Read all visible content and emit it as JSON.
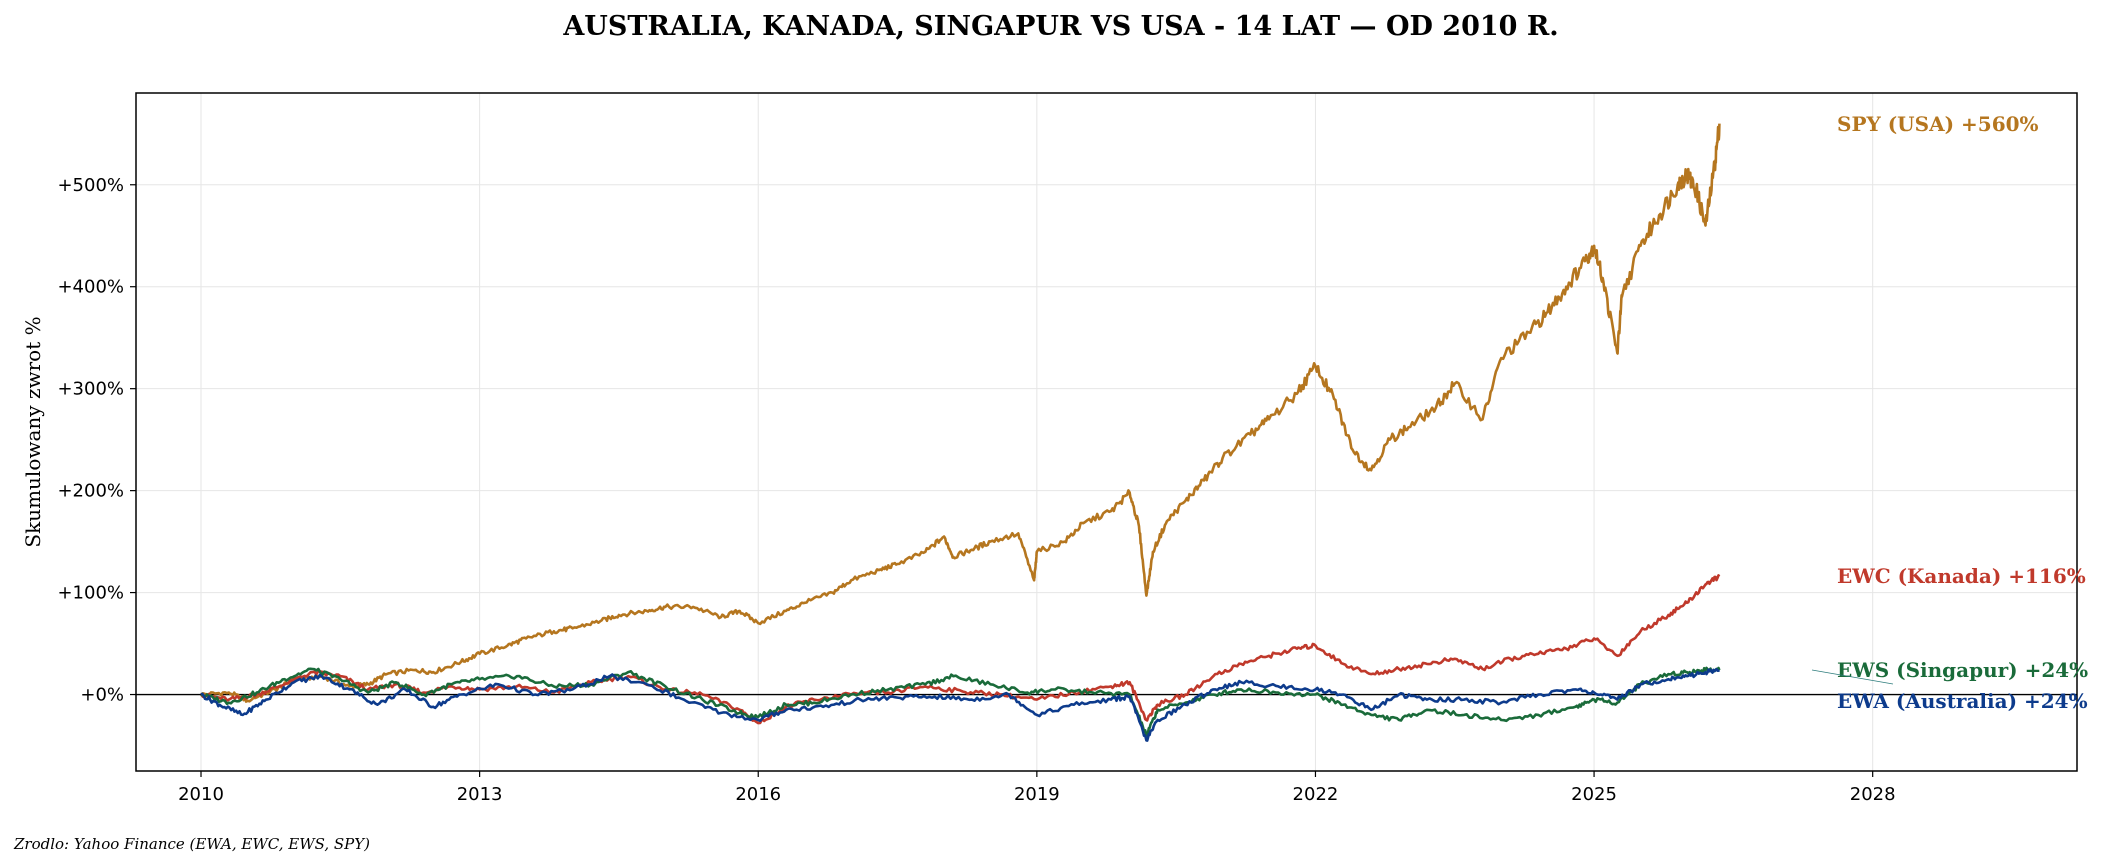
{
  "chart_data": {
    "type": "line",
    "title": "AUSTRALIA, KANADA, SINGAPUR VS USA - 14 LAT — OD 2010 R.",
    "ylabel": "Skumulowany zwrot %",
    "xlabel": "",
    "source": "Zrodlo: Yahoo Finance (EWA, EWC, EWS, SPY)",
    "xlim": [
      2009.3,
      2030.2
    ],
    "ylim": [
      -75,
      590
    ],
    "grid": true,
    "x_ticks": [
      2010,
      2013,
      2016,
      2019,
      2022,
      2025,
      2028
    ],
    "x_tick_labels": [
      "2010",
      "2013",
      "2016",
      "2019",
      "2022",
      "2025",
      "2028"
    ],
    "y_ticks": [
      0,
      100,
      200,
      300,
      400,
      500
    ],
    "y_tick_labels": [
      "+0%",
      "+100%",
      "+200%",
      "+300%",
      "+400%",
      "+500%"
    ],
    "zero_line": true,
    "series": [
      {
        "name": "SPY (USA)",
        "label": "SPY (USA)  +560%",
        "color": "#b5761f",
        "x": [
          2010.0,
          2010.3,
          2010.5,
          2010.8,
          2011.0,
          2011.3,
          2011.6,
          2011.8,
          2012.0,
          2012.3,
          2012.5,
          2012.8,
          2013.0,
          2013.3,
          2013.5,
          2013.8,
          2014.0,
          2014.3,
          2014.5,
          2014.8,
          2015.0,
          2015.3,
          2015.6,
          2015.8,
          2016.0,
          2016.3,
          2016.5,
          2016.8,
          2017.0,
          2017.3,
          2017.5,
          2017.8,
          2018.0,
          2018.1,
          2018.3,
          2018.5,
          2018.8,
          2018.97,
          2019.0,
          2019.3,
          2019.5,
          2019.8,
          2020.0,
          2020.1,
          2020.18,
          2020.25,
          2020.4,
          2020.6,
          2020.8,
          2021.0,
          2021.3,
          2021.5,
          2021.8,
          2022.0,
          2022.2,
          2022.4,
          2022.6,
          2022.8,
          2023.0,
          2023.3,
          2023.5,
          2023.8,
          2024.0,
          2024.3,
          2024.5,
          2024.7,
          2024.9,
          2025.0,
          2025.1,
          2025.25,
          2025.3,
          2025.5,
          2025.7,
          2025.9,
          2026.0,
          2026.1,
          2026.2,
          2026.3,
          2026.35
        ],
        "values": [
          0,
          2,
          -6,
          5,
          14,
          18,
          8,
          10,
          20,
          24,
          22,
          32,
          40,
          48,
          55,
          62,
          65,
          72,
          78,
          82,
          86,
          86,
          76,
          82,
          70,
          82,
          90,
          100,
          112,
          122,
          128,
          140,
          155,
          135,
          142,
          150,
          158,
          112,
          140,
          150,
          168,
          180,
          198,
          165,
          97,
          140,
          170,
          190,
          210,
          232,
          255,
          270,
          295,
          322,
          290,
          240,
          220,
          250,
          262,
          282,
          305,
          270,
          330,
          355,
          375,
          400,
          425,
          440,
          405,
          335,
          390,
          440,
          470,
          500,
          510,
          495,
          460,
          520,
          560
        ]
      },
      {
        "name": "EWC (Kanada)",
        "label": "EWC (Kanada)  +116%",
        "color": "#c0392b",
        "x": [
          2010.0,
          2010.3,
          2010.6,
          2010.9,
          2011.2,
          2011.5,
          2011.8,
          2012.1,
          2012.4,
          2012.7,
          2013.0,
          2013.4,
          2013.8,
          2014.2,
          2014.6,
          2015.0,
          2015.4,
          2015.8,
          2016.0,
          2016.3,
          2016.6,
          2017.0,
          2017.4,
          2017.8,
          2018.2,
          2018.6,
          2019.0,
          2019.4,
          2019.8,
          2020.0,
          2020.18,
          2020.3,
          2020.6,
          2020.9,
          2021.2,
          2021.5,
          2021.8,
          2022.0,
          2022.3,
          2022.6,
          2022.9,
          2023.2,
          2023.5,
          2023.8,
          2024.1,
          2024.4,
          2024.7,
          2025.0,
          2025.25,
          2025.5,
          2025.8,
          2026.0,
          2026.2,
          2026.35
        ],
        "values": [
          0,
          -5,
          0,
          10,
          22,
          18,
          5,
          10,
          2,
          8,
          5,
          8,
          2,
          12,
          18,
          5,
          0,
          -15,
          -28,
          -12,
          -5,
          0,
          2,
          8,
          3,
          0,
          -5,
          2,
          8,
          12,
          -25,
          -10,
          0,
          18,
          30,
          38,
          45,
          48,
          30,
          20,
          25,
          30,
          35,
          25,
          35,
          40,
          45,
          55,
          38,
          62,
          78,
          90,
          108,
          116
        ]
      },
      {
        "name": "EWS (Singapur)",
        "label": "EWS (Singapur)  +24%",
        "color": "#1a6b3a",
        "x": [
          2010.0,
          2010.3,
          2010.6,
          2010.9,
          2011.2,
          2011.5,
          2011.8,
          2012.1,
          2012.4,
          2012.7,
          2013.0,
          2013.4,
          2013.8,
          2014.2,
          2014.6,
          2015.0,
          2015.4,
          2015.8,
          2016.0,
          2016.3,
          2016.6,
          2017.0,
          2017.4,
          2017.8,
          2018.1,
          2018.5,
          2018.9,
          2019.2,
          2019.6,
          2020.0,
          2020.18,
          2020.3,
          2020.6,
          2020.9,
          2021.2,
          2021.6,
          2022.0,
          2022.3,
          2022.6,
          2022.9,
          2023.2,
          2023.6,
          2024.0,
          2024.4,
          2024.8,
          2025.0,
          2025.25,
          2025.5,
          2025.8,
          2026.0,
          2026.2,
          2026.35
        ],
        "values": [
          0,
          -8,
          2,
          15,
          25,
          15,
          2,
          12,
          0,
          10,
          15,
          18,
          8,
          10,
          22,
          8,
          -5,
          -18,
          -22,
          -10,
          -8,
          0,
          5,
          10,
          18,
          10,
          2,
          5,
          2,
          0,
          -40,
          -15,
          -8,
          0,
          5,
          2,
          0,
          -10,
          -20,
          -25,
          -15,
          -20,
          -25,
          -20,
          -12,
          -5,
          -8,
          10,
          20,
          22,
          24,
          24
        ]
      },
      {
        "name": "EWA (Australia)",
        "label": "EWA (Australia)  +24%",
        "color": "#0d3b8c",
        "x": [
          2010.0,
          2010.2,
          2010.45,
          2010.7,
          2011.0,
          2011.3,
          2011.6,
          2011.9,
          2012.2,
          2012.5,
          2012.8,
          2013.2,
          2013.6,
          2014.0,
          2014.4,
          2014.8,
          2015.2,
          2015.6,
          2016.0,
          2016.3,
          2016.7,
          2017.1,
          2017.5,
          2017.9,
          2018.3,
          2018.7,
          2019.0,
          2019.4,
          2019.8,
          2020.0,
          2020.18,
          2020.3,
          2020.6,
          2020.9,
          2021.2,
          2021.6,
          2022.0,
          2022.3,
          2022.6,
          2022.9,
          2023.2,
          2023.6,
          2024.0,
          2024.4,
          2024.8,
          2025.0,
          2025.25,
          2025.5,
          2025.8,
          2026.0,
          2026.2,
          2026.35
        ],
        "values": [
          0,
          -10,
          -20,
          -5,
          12,
          18,
          5,
          -10,
          5,
          -12,
          0,
          10,
          0,
          5,
          18,
          10,
          -5,
          -18,
          -25,
          -15,
          -12,
          -5,
          -3,
          -2,
          -5,
          0,
          -20,
          -10,
          -5,
          -2,
          -45,
          -25,
          -10,
          5,
          12,
          8,
          5,
          0,
          -15,
          0,
          -5,
          -5,
          -8,
          0,
          5,
          2,
          -5,
          10,
          15,
          18,
          22,
          24
        ]
      }
    ]
  }
}
